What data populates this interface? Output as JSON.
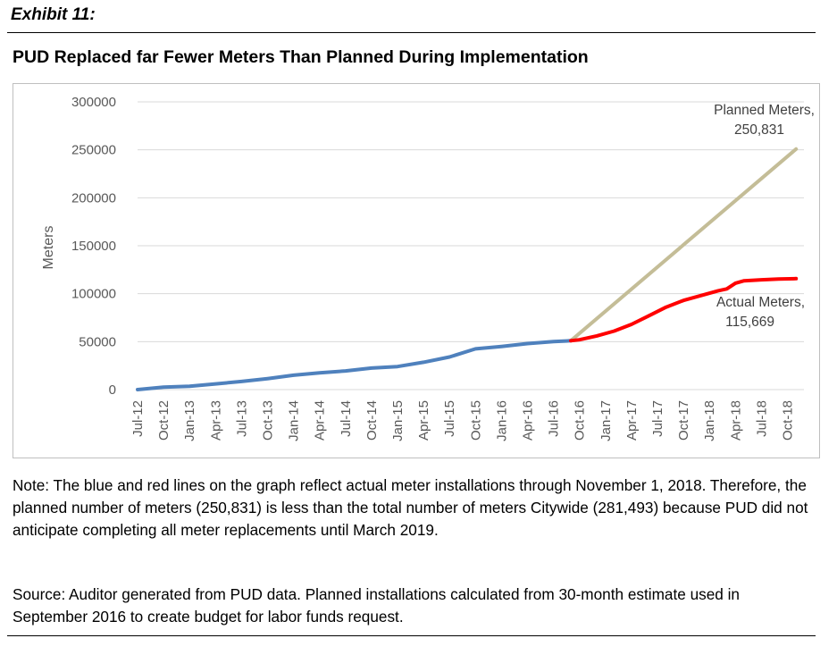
{
  "header": {
    "exhibit": "Exhibit 11:",
    "title": "PUD Replaced far Fewer Meters Than Planned During Implementation"
  },
  "chart_data": {
    "type": "line",
    "title": "PUD Replaced far Fewer Meters Than Planned During Implementation",
    "xlabel": "",
    "ylabel": "Meters",
    "ylim": [
      0,
      300000
    ],
    "yticks": [
      "0",
      "50000",
      "100000",
      "150000",
      "200000",
      "250000",
      "300000"
    ],
    "xticks": [
      "Jul-12",
      "Oct-12",
      "Jan-13",
      "Apr-13",
      "Jul-13",
      "Oct-13",
      "Jan-14",
      "Apr-14",
      "Jul-14",
      "Oct-14",
      "Jan-15",
      "Apr-15",
      "Jul-15",
      "Oct-15",
      "Jan-16",
      "Apr-16",
      "Jul-16",
      "Oct-16",
      "Jan-17",
      "Apr-17",
      "Jul-17",
      "Oct-17",
      "Jan-18",
      "Apr-18",
      "Jul-18",
      "Oct-18"
    ],
    "grid": true,
    "legend": "none",
    "series": [
      {
        "color": "#4f81bd",
        "points": [
          [
            "2012-07",
            0
          ],
          [
            "2012-10",
            2500
          ],
          [
            "2013-01",
            3500
          ],
          [
            "2013-04",
            6000
          ],
          [
            "2013-07",
            8500
          ],
          [
            "2013-10",
            11500
          ],
          [
            "2014-01",
            15000
          ],
          [
            "2014-04",
            17500
          ],
          [
            "2014-07",
            19500
          ],
          [
            "2014-10",
            22500
          ],
          [
            "2015-01",
            24000
          ],
          [
            "2015-04",
            28500
          ],
          [
            "2015-07",
            34000
          ],
          [
            "2015-10",
            42500
          ],
          [
            "2016-01",
            45000
          ],
          [
            "2016-04",
            48000
          ],
          [
            "2016-07",
            50000
          ],
          [
            "2016-09",
            51000
          ]
        ]
      },
      {
        "color": "#ff0000",
        "points": [
          [
            "2016-09",
            51000
          ],
          [
            "2016-10",
            52000
          ],
          [
            "2016-12",
            56000
          ],
          [
            "2017-02",
            61000
          ],
          [
            "2017-04",
            68000
          ],
          [
            "2017-06",
            77000
          ],
          [
            "2017-08",
            86000
          ],
          [
            "2017-10",
            93000
          ],
          [
            "2017-12",
            98000
          ],
          [
            "2018-02",
            103000
          ],
          [
            "2018-03",
            105000
          ],
          [
            "2018-04",
            111000
          ],
          [
            "2018-05",
            113500
          ],
          [
            "2018-07",
            114500
          ],
          [
            "2018-09",
            115300
          ],
          [
            "2018-11",
            115669
          ]
        ]
      },
      {
        "color": "#c4bd97",
        "points": [
          [
            "2016-09",
            51000
          ],
          [
            "2018-11",
            250831
          ]
        ]
      }
    ],
    "annotations": [
      {
        "lines": [
          "Planned Meters,",
          "250,831"
        ],
        "at": [
          "2018-11",
          250831
        ]
      },
      {
        "lines": [
          "Actual Meters,",
          "115,669"
        ],
        "at": [
          "2018-11",
          115669
        ]
      }
    ]
  },
  "notes": {
    "note": "Note: The blue and red lines on the graph reflect actual meter installations through November 1, 2018. Therefore, the planned number of meters (250,831) is less than the total number of meters Citywide (281,493) because PUD did not anticipate completing all meter replacements until March 2019.",
    "source": "Source: Auditor generated from PUD data. Planned installations calculated from 30-month estimate used in September 2016 to create budget for labor funds request."
  }
}
